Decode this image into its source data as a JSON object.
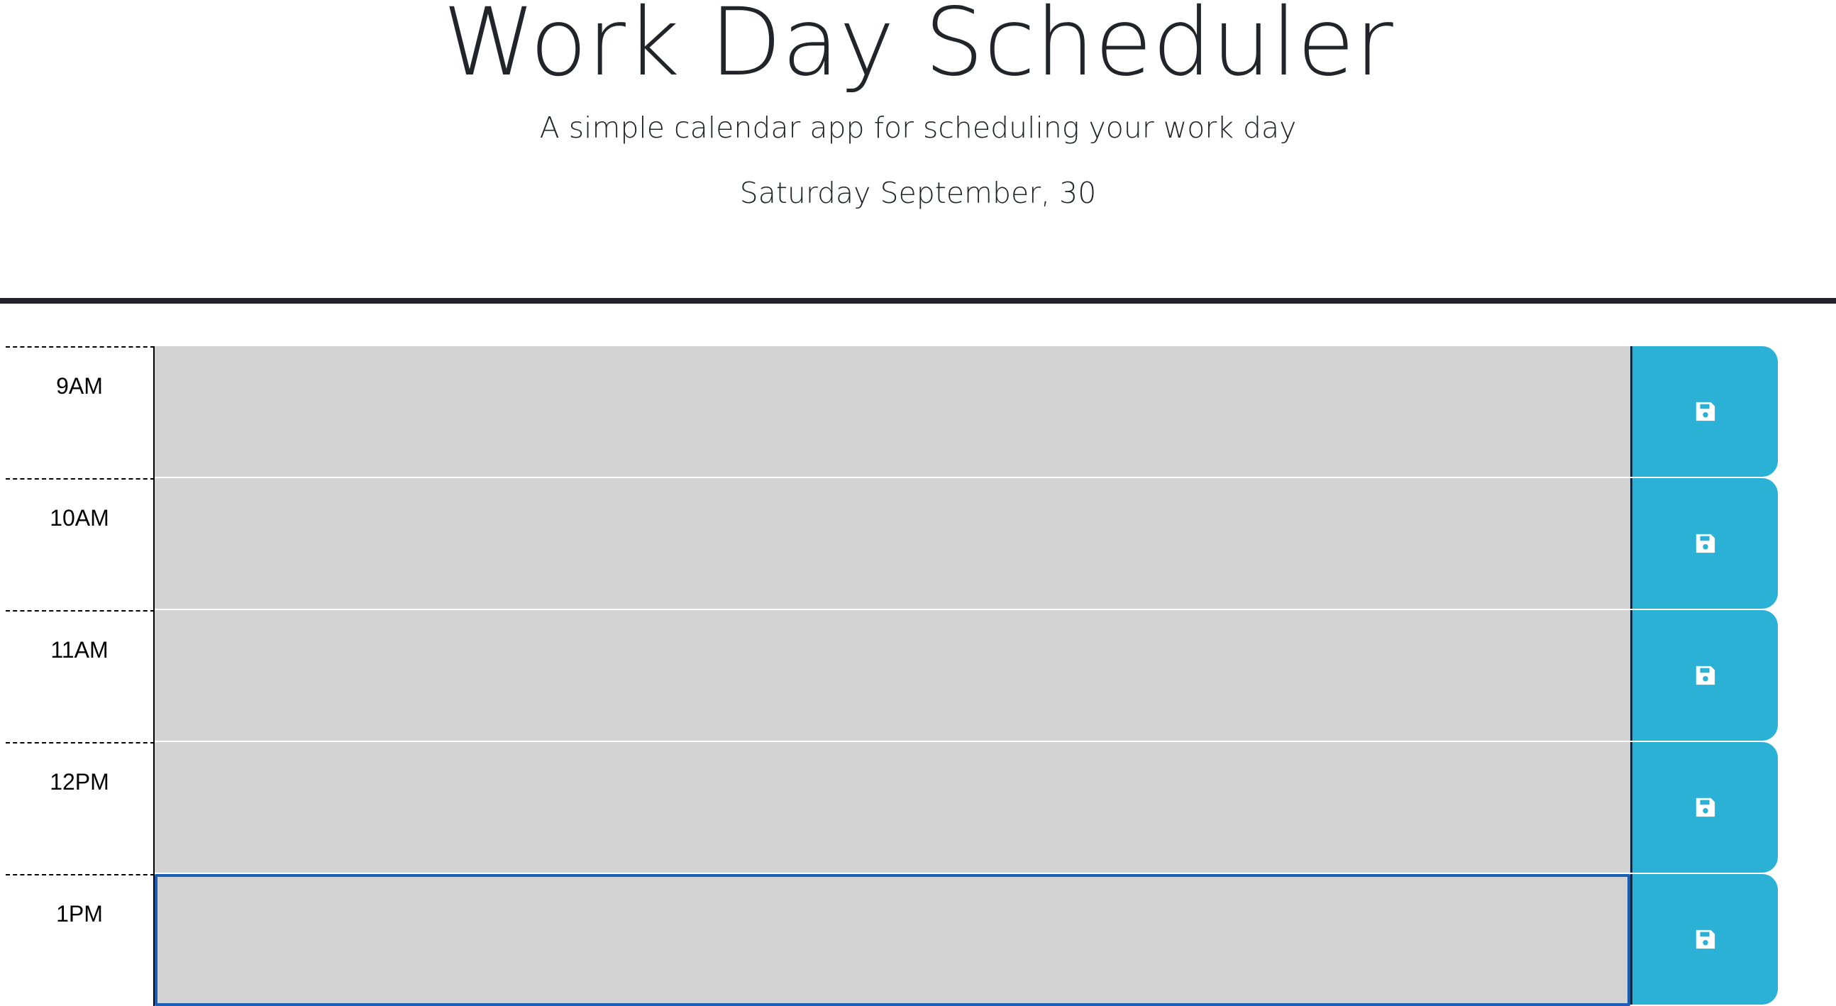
{
  "header": {
    "title": "Work Day Scheduler",
    "subtitle": "A simple calendar app for scheduling your work day",
    "current_day": "Saturday September, 30"
  },
  "time_blocks": [
    {
      "hour": "9AM",
      "description": ""
    },
    {
      "hour": "10AM",
      "description": ""
    },
    {
      "hour": "11AM",
      "description": ""
    },
    {
      "hour": "12PM",
      "description": ""
    },
    {
      "hour": "1PM",
      "description": ""
    }
  ],
  "save_icon": "save-icon",
  "colors": {
    "past_block": "#d3d3d3",
    "save_button": "#2bb0d6",
    "heading_text": "#212529",
    "focus_ring": "#1a5fb4"
  }
}
